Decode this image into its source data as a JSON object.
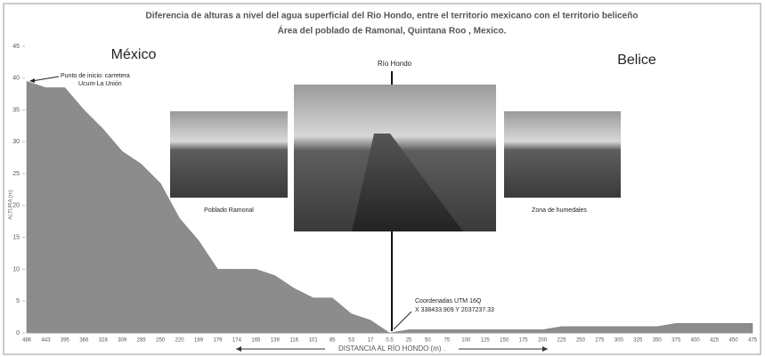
{
  "chart_data": {
    "type": "area",
    "title": "Diferencia de alturas a nivel del agua superficial del Rio Hondo, entre el territorio mexicano con el territorio beliceño",
    "subtitle": "Área del poblado de Ramonal, Quintana Roo , Mexico.",
    "y_label": "ALTURA (m)",
    "x_label": "DISTANCIA AL RÍO HONDO (m) .",
    "color": "#8c8c8c",
    "categories": [
      "486",
      "443",
      "395",
      "366",
      "328",
      "309",
      "285",
      "250",
      "220",
      "189",
      "179",
      "174",
      "165",
      "139",
      "116",
      "101",
      "85",
      "53",
      "17",
      "0.5",
      "25",
      "50",
      "75",
      "100",
      "125",
      "150",
      "175",
      "200",
      "225",
      "250",
      "275",
      "300",
      "325",
      "350",
      "375",
      "400",
      "425",
      "450",
      "475"
    ],
    "values": [
      39.5,
      38.5,
      38.5,
      35,
      32,
      28.5,
      26.5,
      23.5,
      18,
      14.5,
      10,
      10,
      10,
      9,
      7,
      5.5,
      5.5,
      3,
      2,
      0,
      0.5,
      0.5,
      0.5,
      0.5,
      0.5,
      0.5,
      0.5,
      0.5,
      1,
      1,
      1,
      1,
      1,
      1,
      1.5,
      1.5,
      1.5,
      1.5,
      1.5
    ],
    "ylim": [
      0,
      45
    ],
    "yticks": [
      0,
      5,
      10,
      15,
      20,
      25,
      30,
      35,
      40,
      45
    ],
    "annotations": {
      "mexico": "México",
      "belice": "Belice",
      "river": "Río Hondo",
      "start_1": "Punto de inicio: carretera",
      "start_2": "Ucum-La Unión",
      "photo_1": "Poblado Ramonal",
      "photo_3": "Zona de humedales",
      "coords_1": "Coordenadas UTM 16Q",
      "coords_2": "X 338433.909  Y 2037237.33"
    }
  }
}
